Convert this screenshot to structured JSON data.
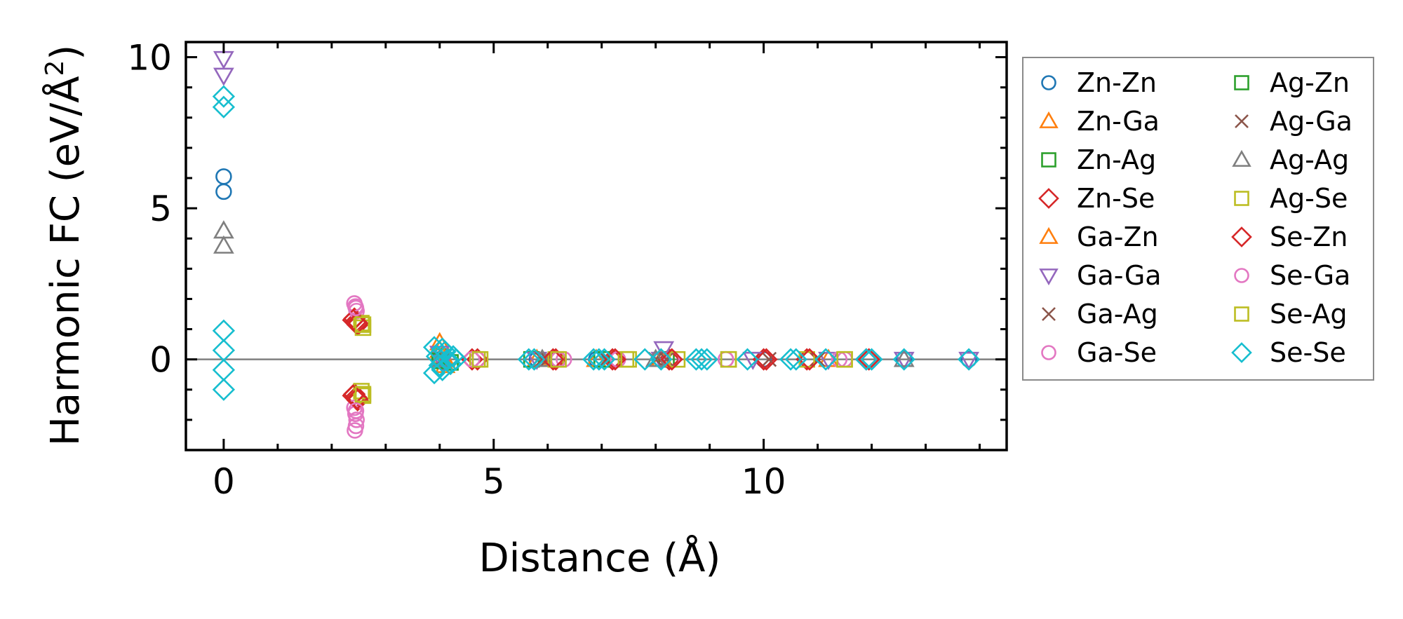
{
  "chart_data": {
    "type": "scatter",
    "xlabel": "Distance (Å)",
    "ylabel": "Harmonic FC (eV/Å",
    "ylabel_superscript": "2",
    "ylabel_close": ")",
    "xlim": [
      -0.7,
      14.5
    ],
    "ylim": [
      -3,
      10.5
    ],
    "x_ticks": [
      0,
      5,
      10
    ],
    "x_tick_labels": [
      "0",
      "5",
      "10"
    ],
    "y_ticks": [
      0,
      5,
      10
    ],
    "y_tick_labels": [
      "0",
      "5",
      "10"
    ],
    "x_minor_step": 1,
    "y_minor_step": 1,
    "grid": false,
    "zero_line": true,
    "legend_position": "outside-right",
    "legend_columns": 2,
    "series": [
      {
        "name": "Zn-Zn",
        "marker": "circle",
        "color": "#1f77b4",
        "points": [
          [
            0,
            6.05
          ],
          [
            0,
            5.55
          ],
          [
            4.0,
            0.0
          ],
          [
            5.8,
            0.0
          ],
          [
            6.9,
            0.0
          ],
          [
            8.1,
            0.0
          ],
          [
            10.0,
            0.0
          ],
          [
            12.6,
            0.0
          ],
          [
            13.8,
            0.0
          ]
        ]
      },
      {
        "name": "Zn-Ga",
        "marker": "triangle-up",
        "color": "#ff7f0e",
        "points": [
          [
            4.0,
            0.55
          ],
          [
            4.05,
            0.1
          ],
          [
            4.1,
            -0.2
          ],
          [
            5.8,
            0.0
          ],
          [
            8.1,
            0.0
          ],
          [
            11.2,
            0.0
          ]
        ]
      },
      {
        "name": "Zn-Ag",
        "marker": "square",
        "color": "#2ca02c",
        "points": [
          [
            4.0,
            0.1
          ],
          [
            4.2,
            -0.1
          ],
          [
            5.7,
            0.0
          ],
          [
            8.2,
            0.0
          ]
        ]
      },
      {
        "name": "Zn-Se",
        "marker": "diamond",
        "color": "#d62728",
        "points": [
          [
            2.42,
            1.35
          ],
          [
            2.45,
            1.25
          ],
          [
            2.48,
            1.15
          ],
          [
            2.42,
            -1.15
          ],
          [
            2.45,
            -1.25
          ],
          [
            2.48,
            -1.35
          ],
          [
            4.7,
            0.0
          ],
          [
            6.15,
            0.0
          ],
          [
            7.2,
            0.0
          ],
          [
            8.25,
            0.0
          ],
          [
            10.0,
            0.0
          ],
          [
            10.8,
            0.0
          ],
          [
            11.95,
            0.0
          ]
        ]
      },
      {
        "name": "Ga-Zn",
        "marker": "triangle-up",
        "color": "#ff7f0e",
        "points": [
          [
            4.0,
            0.3
          ],
          [
            4.1,
            0.0
          ],
          [
            6.9,
            0.0
          ],
          [
            8.1,
            0.0
          ]
        ]
      },
      {
        "name": "Ga-Ga",
        "marker": "triangle-down",
        "color": "#9467bd",
        "points": [
          [
            0,
            9.95
          ],
          [
            0,
            9.4
          ],
          [
            4.0,
            0.2
          ],
          [
            4.05,
            -0.1
          ],
          [
            5.8,
            0.0
          ],
          [
            8.15,
            0.35
          ],
          [
            8.1,
            0.0
          ],
          [
            9.8,
            0.0
          ],
          [
            11.2,
            0.0
          ],
          [
            12.6,
            0.0
          ],
          [
            13.8,
            0.0
          ]
        ]
      },
      {
        "name": "Ga-Ag",
        "marker": "cross",
        "color": "#8c564b",
        "points": [
          [
            4.1,
            0.0
          ],
          [
            5.9,
            0.0
          ],
          [
            7.1,
            0.0
          ],
          [
            8.0,
            0.0
          ],
          [
            10.1,
            0.0
          ]
        ]
      },
      {
        "name": "Ga-Se",
        "marker": "circle",
        "color": "#e377c2",
        "points": [
          [
            2.42,
            1.85
          ],
          [
            2.44,
            1.75
          ],
          [
            2.46,
            1.6
          ],
          [
            2.42,
            -1.6
          ],
          [
            2.44,
            -1.8
          ],
          [
            2.46,
            -2.0
          ],
          [
            2.43,
            -2.35
          ],
          [
            4.7,
            0.0
          ],
          [
            6.2,
            0.0
          ],
          [
            6.3,
            0.0
          ],
          [
            7.3,
            0.0
          ],
          [
            8.3,
            0.0
          ],
          [
            9.3,
            0.0
          ],
          [
            11.4,
            0.0
          ]
        ]
      },
      {
        "name": "Ag-Zn",
        "marker": "square",
        "color": "#2ca02c",
        "points": [
          [
            4.0,
            -0.05
          ],
          [
            7.0,
            0.0
          ]
        ]
      },
      {
        "name": "Ag-Ga",
        "marker": "cross",
        "color": "#8c564b",
        "points": [
          [
            4.05,
            0.0
          ],
          [
            6.0,
            0.0
          ],
          [
            8.2,
            0.0
          ],
          [
            11.0,
            0.0
          ]
        ]
      },
      {
        "name": "Ag-Ag",
        "marker": "triangle-up",
        "color": "#7f7f7f",
        "points": [
          [
            0,
            4.25
          ],
          [
            0,
            3.75
          ],
          [
            4.0,
            0.0
          ],
          [
            5.9,
            0.0
          ],
          [
            8.0,
            0.0
          ],
          [
            12.6,
            0.0
          ]
        ]
      },
      {
        "name": "Ag-Se",
        "marker": "square",
        "color": "#bcbd22",
        "points": [
          [
            2.55,
            1.2
          ],
          [
            2.58,
            1.05
          ],
          [
            2.55,
            -1.05
          ],
          [
            2.58,
            -1.2
          ],
          [
            4.7,
            0.0
          ],
          [
            6.15,
            0.0
          ],
          [
            7.45,
            0.0
          ],
          [
            8.4,
            0.0
          ],
          [
            9.35,
            0.0
          ],
          [
            10.8,
            0.0
          ],
          [
            11.5,
            0.0
          ]
        ]
      },
      {
        "name": "Se-Zn",
        "marker": "diamond",
        "color": "#d62728",
        "points": [
          [
            2.4,
            1.3
          ],
          [
            2.47,
            1.2
          ],
          [
            2.4,
            -1.2
          ],
          [
            2.47,
            -1.3
          ],
          [
            4.6,
            0.0
          ],
          [
            6.1,
            0.0
          ],
          [
            7.25,
            0.0
          ],
          [
            8.3,
            0.0
          ],
          [
            10.05,
            0.0
          ],
          [
            10.85,
            0.0
          ],
          [
            11.9,
            0.0
          ]
        ]
      },
      {
        "name": "Se-Ga",
        "marker": "circle",
        "color": "#e377c2",
        "points": [
          [
            2.45,
            1.7
          ],
          [
            2.45,
            -1.7
          ],
          [
            2.45,
            -2.2
          ],
          [
            4.6,
            0.0
          ],
          [
            6.2,
            0.0
          ],
          [
            9.3,
            0.0
          ],
          [
            11.5,
            0.0
          ]
        ]
      },
      {
        "name": "Se-Ag",
        "marker": "square",
        "color": "#bcbd22",
        "points": [
          [
            2.58,
            1.15
          ],
          [
            2.58,
            -1.15
          ],
          [
            4.75,
            0.0
          ],
          [
            6.2,
            0.0
          ],
          [
            7.5,
            0.0
          ],
          [
            9.35,
            0.0
          ],
          [
            11.5,
            0.0
          ]
        ]
      },
      {
        "name": "Se-Se",
        "marker": "diamond",
        "color": "#17becf",
        "points": [
          [
            0,
            8.7
          ],
          [
            0,
            8.35
          ],
          [
            0,
            0.95
          ],
          [
            0,
            0.3
          ],
          [
            0,
            -0.35
          ],
          [
            0,
            -1.0
          ],
          [
            3.9,
            0.4
          ],
          [
            3.95,
            0.1
          ],
          [
            4.0,
            -0.2
          ],
          [
            4.05,
            -0.35
          ],
          [
            4.1,
            0.25
          ],
          [
            4.15,
            0.0
          ],
          [
            4.2,
            -0.15
          ],
          [
            4.25,
            0.1
          ],
          [
            4.3,
            0.0
          ],
          [
            3.9,
            -0.45
          ],
          [
            4.05,
            0.35
          ],
          [
            5.65,
            0.0
          ],
          [
            5.75,
            0.0
          ],
          [
            6.85,
            0.0
          ],
          [
            6.95,
            0.0
          ],
          [
            7.05,
            0.0
          ],
          [
            7.8,
            0.0
          ],
          [
            8.1,
            0.0
          ],
          [
            8.75,
            0.0
          ],
          [
            8.85,
            0.0
          ],
          [
            8.95,
            0.0
          ],
          [
            9.7,
            0.0
          ],
          [
            10.5,
            0.0
          ],
          [
            10.6,
            0.0
          ],
          [
            11.15,
            0.0
          ],
          [
            11.9,
            0.0
          ],
          [
            12.0,
            0.0
          ],
          [
            12.6,
            0.0
          ],
          [
            13.8,
            0.0
          ]
        ]
      }
    ]
  }
}
